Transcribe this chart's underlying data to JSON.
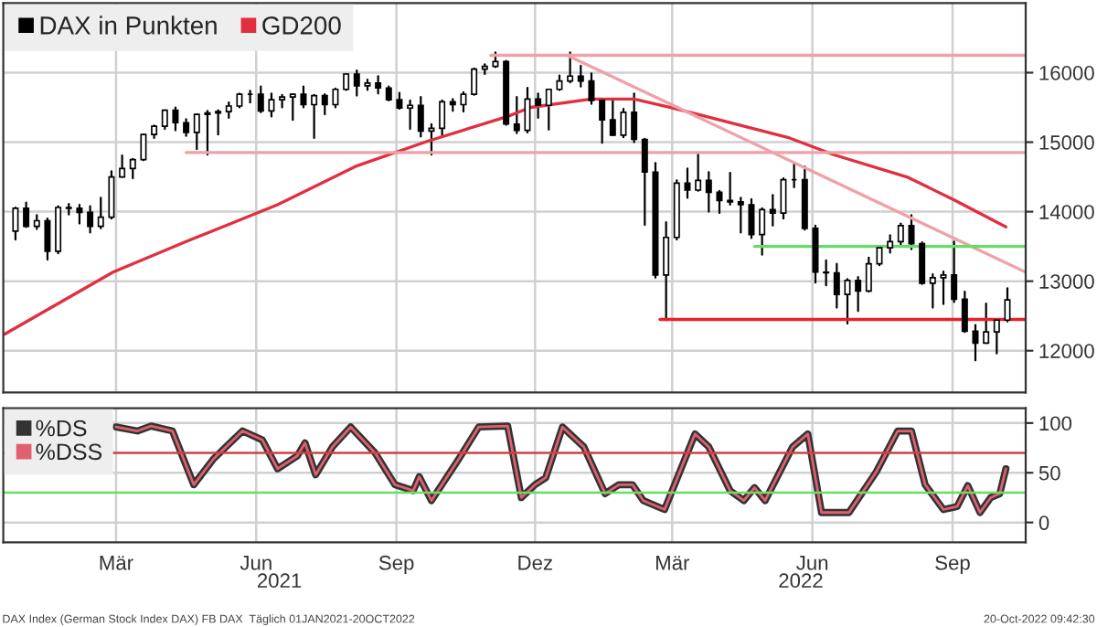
{
  "chart_data": [
    {
      "type": "candlestick",
      "legend": "top left",
      "grid": true,
      "tick_labels": "y",
      "xlim": [
        "2020-12-31",
        "2022-11-02"
      ],
      "ylim": [
        11400,
        17000
      ],
      "yticks": [
        12000,
        13000,
        14000,
        15000,
        16000
      ],
      "xticks": [
        {
          "value": "2021-03-15",
          "label": null
        },
        {
          "value": "2021-06-15",
          "label": null
        },
        {
          "value": "2021-09-15",
          "label": null
        },
        {
          "value": "2021-12-15",
          "label": null
        },
        {
          "value": "2022-03-15",
          "label": null
        },
        {
          "value": "2022-06-15",
          "label": null
        },
        {
          "value": "2022-09-15",
          "label": null
        }
      ],
      "series": [
        {
          "type": "candlestick",
          "name": "DAX in Punkten",
          "color": "#000000",
          "x": [
            "2021-01-08",
            "2021-01-15",
            "2021-01-22",
            "2021-01-29",
            "2021-02-05",
            "2021-02-12",
            "2021-02-19",
            "2021-02-26",
            "2021-03-05",
            "2021-03-12",
            "2021-03-19",
            "2021-03-26",
            "2021-04-02",
            "2021-04-09",
            "2021-04-16",
            "2021-04-23",
            "2021-04-30",
            "2021-05-07",
            "2021-05-14",
            "2021-05-21",
            "2021-05-28",
            "2021-06-04",
            "2021-06-11",
            "2021-06-18",
            "2021-06-25",
            "2021-07-02",
            "2021-07-09",
            "2021-07-16",
            "2021-07-23",
            "2021-07-30",
            "2021-08-06",
            "2021-08-13",
            "2021-08-20",
            "2021-08-27",
            "2021-09-03",
            "2021-09-10",
            "2021-09-17",
            "2021-09-24",
            "2021-10-01",
            "2021-10-08",
            "2021-10-15",
            "2021-10-22",
            "2021-10-29",
            "2021-11-05",
            "2021-11-12",
            "2021-11-19",
            "2021-11-26",
            "2021-12-03",
            "2021-12-10",
            "2021-12-17",
            "2021-12-24",
            "2021-12-31",
            "2022-01-07",
            "2022-01-14",
            "2022-01-21",
            "2022-01-28",
            "2022-02-04",
            "2022-02-11",
            "2022-02-18",
            "2022-02-25",
            "2022-03-04",
            "2022-03-11",
            "2022-03-18",
            "2022-03-25",
            "2022-04-01",
            "2022-04-08",
            "2022-04-15",
            "2022-04-22",
            "2022-04-29",
            "2022-05-06",
            "2022-05-13",
            "2022-05-20",
            "2022-05-27",
            "2022-06-03",
            "2022-06-10",
            "2022-06-17",
            "2022-06-24",
            "2022-07-01",
            "2022-07-08",
            "2022-07-15",
            "2022-07-22",
            "2022-07-29",
            "2022-08-05",
            "2022-08-12",
            "2022-08-19",
            "2022-08-26",
            "2022-09-02",
            "2022-09-09",
            "2022-09-16",
            "2022-09-23",
            "2022-09-30",
            "2022-10-07",
            "2022-10-14",
            "2022-10-21"
          ],
          "ohlc": [
            [
              13720,
              14060,
              13600,
              14050
            ],
            [
              14050,
              14130,
              13780,
              13790
            ],
            [
              13790,
              13950,
              13750,
              13870
            ],
            [
              13870,
              13900,
              13310,
              13430
            ],
            [
              13430,
              14080,
              13400,
              14060
            ],
            [
              14060,
              14110,
              13960,
              14050
            ],
            [
              14050,
              14100,
              13830,
              13990
            ],
            [
              13990,
              14080,
              13700,
              13790
            ],
            [
              13790,
              14200,
              13760,
              13920
            ],
            [
              13920,
              14580,
              13900,
              14500
            ],
            [
              14500,
              14810,
              14500,
              14620
            ],
            [
              14620,
              14760,
              14480,
              14750
            ],
            [
              14750,
              15110,
              14740,
              15110
            ],
            [
              15110,
              15240,
              15060,
              15230
            ],
            [
              15230,
              15460,
              15190,
              15460
            ],
            [
              15460,
              15500,
              15170,
              15280
            ],
            [
              15280,
              15330,
              15090,
              15140
            ],
            [
              15140,
              15400,
              14900,
              15400
            ],
            [
              15400,
              15450,
              14820,
              15420
            ],
            [
              15420,
              15460,
              15110,
              15440
            ],
            [
              15440,
              15570,
              15350,
              15520
            ],
            [
              15520,
              15700,
              15500,
              15690
            ],
            [
              15690,
              15740,
              15570,
              15690
            ],
            [
              15690,
              15800,
              15430,
              15450
            ],
            [
              15450,
              15700,
              15370,
              15610
            ],
            [
              15610,
              15680,
              15500,
              15650
            ],
            [
              15650,
              15690,
              15320,
              15690
            ],
            [
              15690,
              15800,
              15500,
              15540
            ],
            [
              15540,
              15680,
              15060,
              15670
            ],
            [
              15670,
              15690,
              15400,
              15540
            ],
            [
              15540,
              15770,
              15500,
              15760
            ],
            [
              15760,
              15980,
              15750,
              15980
            ],
            [
              15980,
              16030,
              15670,
              15810
            ],
            [
              15810,
              15900,
              15750,
              15850
            ],
            [
              15850,
              15950,
              15700,
              15780
            ],
            [
              15780,
              15800,
              15600,
              15610
            ],
            [
              15610,
              15710,
              15480,
              15490
            ],
            [
              15490,
              15600,
              15190,
              15530
            ],
            [
              15530,
              15650,
              15080,
              15160
            ],
            [
              15160,
              15260,
              14820,
              15200
            ],
            [
              15200,
              15600,
              15100,
              15580
            ],
            [
              15580,
              15620,
              15450,
              15540
            ],
            [
              15540,
              15720,
              15440,
              15690
            ],
            [
              15690,
              16060,
              15680,
              16050
            ],
            [
              16050,
              16120,
              15980,
              16090
            ],
            [
              16090,
              16290,
              16080,
              16160
            ],
            [
              16160,
              16170,
              15250,
              15260
            ],
            [
              15260,
              15650,
              15130,
              15170
            ],
            [
              15170,
              15780,
              15140,
              15620
            ],
            [
              15620,
              15700,
              15350,
              15530
            ],
            [
              15530,
              15760,
              15180,
              15760
            ],
            [
              15760,
              15960,
              15750,
              15880
            ],
            [
              15880,
              16290,
              15860,
              15950
            ],
            [
              15950,
              16100,
              15800,
              15880
            ],
            [
              15880,
              15990,
              15550,
              15600
            ],
            [
              15600,
              15620,
              14990,
              15320
            ],
            [
              15320,
              15600,
              15100,
              15100
            ],
            [
              15100,
              15480,
              15070,
              15430
            ],
            [
              15430,
              15700,
              15000,
              15040
            ],
            [
              15040,
              15050,
              13810,
              14570
            ],
            [
              14570,
              14700,
              13050,
              13090
            ],
            [
              13090,
              13850,
              12440,
              13630
            ],
            [
              13630,
              14450,
              13600,
              14410
            ],
            [
              14410,
              14620,
              14200,
              14310
            ],
            [
              14310,
              14820,
              14300,
              14450
            ],
            [
              14450,
              14570,
              14000,
              14280
            ],
            [
              14280,
              14300,
              13980,
              14160
            ],
            [
              14160,
              14560,
              14100,
              14140
            ],
            [
              14140,
              14200,
              13700,
              14100
            ],
            [
              14100,
              14180,
              13620,
              13670
            ],
            [
              13670,
              14050,
              13380,
              14030
            ],
            [
              14030,
              14240,
              13800,
              13980
            ],
            [
              13980,
              14480,
              13900,
              14460
            ],
            [
              14460,
              14700,
              14350,
              14460
            ],
            [
              14460,
              14650,
              13740,
              13760
            ],
            [
              13760,
              13800,
              12980,
              13130
            ],
            [
              13130,
              13300,
              12940,
              13120
            ],
            [
              13120,
              13250,
              12620,
              12810
            ],
            [
              12810,
              13030,
              12390,
              13010
            ],
            [
              13010,
              13060,
              12570,
              12860
            ],
            [
              12860,
              13340,
              12850,
              13250
            ],
            [
              13250,
              13500,
              13230,
              13480
            ],
            [
              13480,
              13660,
              13410,
              13570
            ],
            [
              13570,
              13830,
              13530,
              13800
            ],
            [
              13800,
              13950,
              13460,
              13540
            ],
            [
              13540,
              13560,
              12960,
              12970
            ],
            [
              12970,
              13100,
              12620,
              13050
            ],
            [
              13050,
              13140,
              12670,
              13090
            ],
            [
              13090,
              13570,
              12700,
              12740
            ],
            [
              12740,
              12850,
              12270,
              12280
            ],
            [
              12280,
              12370,
              11860,
              12110
            ],
            [
              12110,
              12680,
              12110,
              12270
            ],
            [
              12270,
              12450,
              11960,
              12440
            ],
            [
              12440,
              12900,
              12420,
              12730
            ]
          ]
        },
        {
          "type": "line",
          "name": "GD200",
          "color": "#e0303f",
          "x": [
            "2021-01-01",
            "2021-03-13",
            "2021-04-30",
            "2021-06-29",
            "2021-08-19",
            "2021-10-05",
            "2021-11-27",
            "2021-12-12",
            "2022-01-21",
            "2022-02-18",
            "2022-03-14",
            "2022-05-31",
            "2022-06-29",
            "2022-08-16",
            "2022-09-16",
            "2022-10-20"
          ],
          "values": [
            12240,
            13130,
            13570,
            14100,
            14650,
            15010,
            15370,
            15500,
            15620,
            15620,
            15500,
            15060,
            14820,
            14500,
            14170,
            13780
          ]
        },
        {
          "type": "line",
          "color": "#f0a0a8",
          "x": [
            "2021-11-16",
            "2022-11-02"
          ],
          "values": [
            16250,
            16250
          ]
        },
        {
          "type": "line",
          "color": "#f0a0a8",
          "x": [
            "2021-04-30",
            "2022-11-02"
          ],
          "values": [
            14850,
            14850
          ]
        },
        {
          "type": "line",
          "color": "#f0a0a8",
          "x": [
            "2022-01-05",
            "2022-11-02"
          ],
          "values": [
            16250,
            13130
          ]
        },
        {
          "type": "line",
          "color": "#66dd66",
          "x": [
            "2022-05-08",
            "2022-11-02"
          ],
          "values": [
            13500,
            13500
          ]
        },
        {
          "type": "line",
          "color": "#e8202a",
          "x": [
            "2022-03-07",
            "2022-11-02"
          ],
          "values": [
            12450,
            12450
          ]
        }
      ]
    },
    {
      "type": "line",
      "legend": "top left",
      "grid": true,
      "xlim": [
        "2020-12-31",
        "2022-11-02"
      ],
      "ylim": [
        -20,
        115
      ],
      "yticks": [
        0,
        50,
        100
      ],
      "xticks": [
        {
          "value": "2021-03-15",
          "label": "Mär"
        },
        {
          "value": "2021-06-15",
          "label": "Jun"
        },
        {
          "value": "2021-09-15",
          "label": "Sep"
        },
        {
          "value": "2021-12-15",
          "label": "Dez"
        },
        {
          "value": "2022-03-15",
          "label": "Mär"
        },
        {
          "value": "2022-06-15",
          "label": "Jun"
        },
        {
          "value": "2022-09-15",
          "label": "Sep"
        }
      ],
      "x": [
        "2021-03-15",
        "2021-03-29",
        "2021-04-07",
        "2021-04-21",
        "2021-05-05",
        "2021-05-18",
        "2021-06-06",
        "2021-06-19",
        "2021-06-29",
        "2021-07-12",
        "2021-07-17",
        "2021-07-24",
        "2021-08-04",
        "2021-08-16",
        "2021-09-01",
        "2021-09-14",
        "2021-09-26",
        "2021-09-30",
        "2021-10-08",
        "2021-10-26",
        "2021-11-08",
        "2021-11-27",
        "2021-12-06",
        "2021-12-15",
        "2021-12-22",
        "2022-01-02",
        "2022-01-16",
        "2022-01-30",
        "2022-02-08",
        "2022-02-17",
        "2022-02-24",
        "2022-03-10",
        "2022-03-30",
        "2022-04-08",
        "2022-04-22",
        "2022-05-01",
        "2022-05-08",
        "2022-05-15",
        "2022-06-02",
        "2022-06-12",
        "2022-06-21",
        "2022-07-09",
        "2022-07-27",
        "2022-08-10",
        "2022-08-19",
        "2022-08-28",
        "2022-09-09",
        "2022-09-18",
        "2022-09-25",
        "2022-10-03",
        "2022-10-10",
        "2022-10-16",
        "2022-10-20"
      ],
      "series": [
        {
          "name": "%DS",
          "color": "#333333",
          "values": [
            96,
            92,
            97,
            92,
            38,
            64,
            92,
            83,
            54,
            67,
            80,
            48,
            76,
            96,
            70,
            38,
            32,
            46,
            22,
            64,
            96,
            97,
            25,
            38,
            45,
            96,
            76,
            29,
            38,
            38,
            22,
            13,
            89,
            76,
            32,
            22,
            35,
            22,
            76,
            89,
            10,
            10,
            51,
            92,
            92,
            38,
            13,
            16,
            37,
            10,
            25,
            29,
            54
          ]
        },
        {
          "name": "%DSS",
          "color": "#e06070",
          "values": [
            96,
            92,
            97,
            92,
            38,
            64,
            92,
            83,
            54,
            67,
            80,
            48,
            76,
            96,
            70,
            38,
            32,
            46,
            22,
            64,
            96,
            97,
            25,
            38,
            45,
            96,
            76,
            29,
            38,
            38,
            22,
            13,
            89,
            76,
            32,
            22,
            35,
            22,
            76,
            89,
            10,
            10,
            51,
            92,
            92,
            38,
            13,
            16,
            37,
            10,
            25,
            29,
            54
          ]
        }
      ],
      "ref_lines": [
        {
          "axis": "y",
          "value": 70,
          "color": "#d04040"
        },
        {
          "axis": "y",
          "value": 30,
          "color": "#66dd66"
        }
      ],
      "annotations": [
        "2021",
        "2022",
        "DAX Index (German Stock Index DAX) FB DAX  Täglich 01JAN2021-20OCT2022",
        "20-Oct-2022 09:42:30"
      ]
    }
  ]
}
